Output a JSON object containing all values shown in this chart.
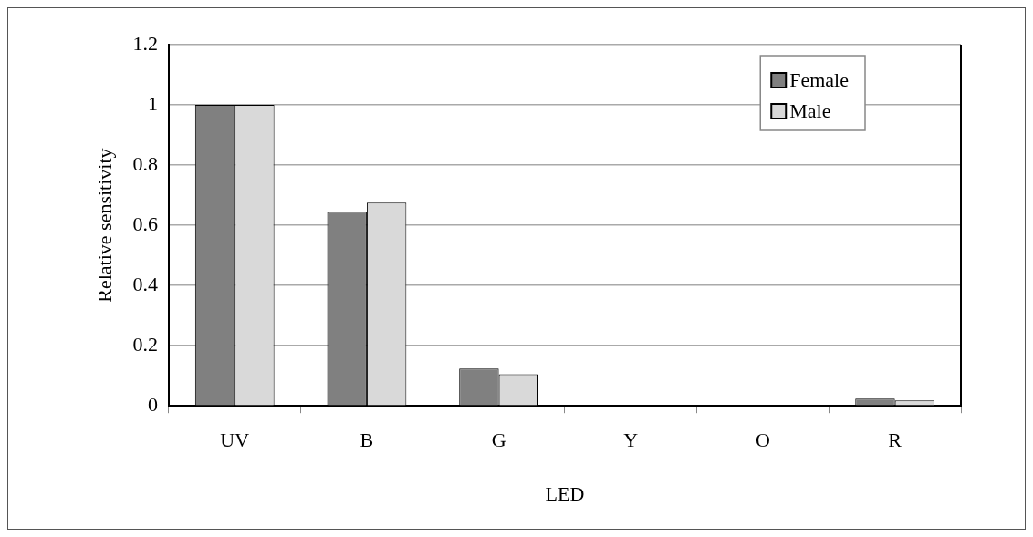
{
  "chart_data": {
    "type": "bar",
    "xlabel": "LED",
    "ylabel": "Relative sensitivity",
    "categories": [
      "UV",
      "B",
      "G",
      "Y",
      "O",
      "R"
    ],
    "series": [
      {
        "name": "Female",
        "color": "#808080",
        "values": [
          1,
          0.645,
          0.124,
          0,
          0,
          0.024
        ]
      },
      {
        "name": "Male",
        "color": "#d9d9d9",
        "values": [
          1,
          0.675,
          0.105,
          0,
          0,
          0.018
        ]
      }
    ],
    "ylim": [
      0,
      1.2
    ],
    "yticks": [
      0,
      0.2,
      0.4,
      0.6,
      0.8,
      1,
      1.2
    ],
    "grid": "y",
    "legend": "top right"
  }
}
